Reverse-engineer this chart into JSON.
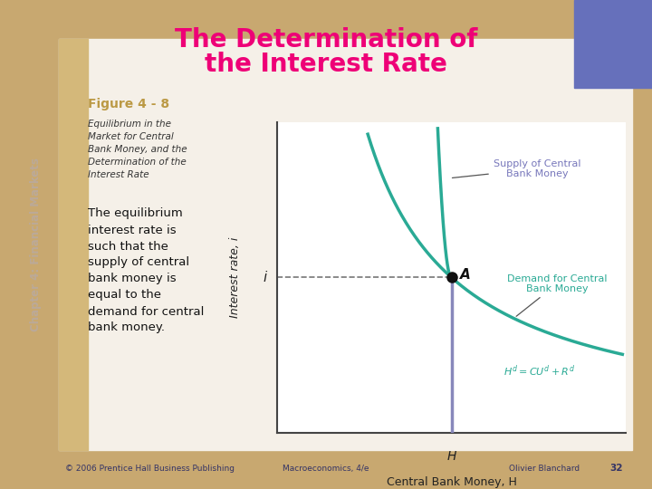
{
  "title_line1": "The Determination of",
  "title_line2": "the Interest Rate",
  "title_color": "#ee0077",
  "title_fontsize": 20,
  "bg_outer_top": "#c8a870",
  "bg_outer_bottom": "#c8b890",
  "bg_slide": "#f5f0e8",
  "bg_plot": "#ffffff",
  "chapter_label": "Chapter 4: Financial Markets",
  "chapter_color": "#bbaa99",
  "figure_label": "Figure 4 - 8",
  "figure_label_color": "#bb9944",
  "caption_italic": "Equilibrium in the\nMarket for Central\nBank Money, and the\nDetermination of the\nInterest Rate",
  "caption_body": "The equilibrium\ninterest rate is\nsuch that the\nsupply of central\nbank money is\nequal to the\ndemand for central\nbank money.",
  "footer_left": "© 2006 Prentice Hall Business Publishing",
  "footer_mid": "Macroeconomics, 4/e",
  "footer_right": "Olivier Blanchard",
  "footer_page": "32",
  "curve_color": "#2aaa95",
  "supply_label": "Supply of Central\nBank Money",
  "demand_label": "Demand for Central\nBank Money",
  "supply_label_color": "#7777bb",
  "demand_label_color": "#2aaa95",
  "formula_color": "#2aaa95",
  "eq_point_label": "A",
  "eq_i_label": "i",
  "eq_h_label": "H",
  "xlabel": "Central Bank Money, ",
  "xlabel_H": "H",
  "ylabel": "Interest rate, ",
  "ylabel_i": "i",
  "eq_x": 5.0,
  "eq_y": 5.0,
  "xlim": [
    0,
    10
  ],
  "ylim": [
    0,
    10
  ],
  "dashed_color": "#777777",
  "axis_label_color": "#222222",
  "supply_vertical_color": "#8888bb",
  "footer_color": "#333366"
}
